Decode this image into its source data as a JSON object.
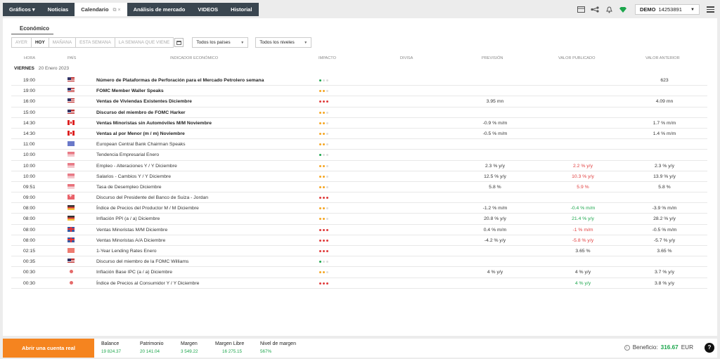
{
  "tabs": [
    {
      "label": "Gráficos ▾"
    },
    {
      "label": "Noticias"
    },
    {
      "label": "Calendario",
      "icons": "⧉ ×"
    },
    {
      "label": "Análisis de mercado"
    },
    {
      "label": "VIDEOS"
    },
    {
      "label": "Historial"
    }
  ],
  "account": {
    "mode": "DEMO",
    "number": "14253891"
  },
  "section_tab": "Económico",
  "date_buttons": [
    "AYER",
    "HOY",
    "MAÑANA",
    "ESTA SEMANA",
    "LA SEMANA QUE VIENE"
  ],
  "selected_date_button": "HOY",
  "filters": {
    "countries": "Todos los países",
    "levels": "Todos los niveles"
  },
  "columns": {
    "time": "HORA",
    "country": "PAÍS",
    "indicator": "INDICADOR ECONÓMICO",
    "impact": "IMPACTO",
    "currency": "DIVISA",
    "forecast": "PREVISIÓN",
    "published": "VALOR PUBLICADO",
    "previous": "VALOR ANTERIOR"
  },
  "day": {
    "weekday": "VIERNES",
    "date": "20 Enero 2023"
  },
  "impact_colors": {
    "low": "#1ca64c",
    "medium": "#f5a623",
    "high": "#e03c3c",
    "off": "#dddddd"
  },
  "events": [
    {
      "time": "19:00",
      "flag": "us",
      "name": "Número de Plataformas de Perforación para el Mercado Petrolero semana",
      "bold": true,
      "impact": "low",
      "forecast": "",
      "published": "",
      "published_color": "",
      "previous": "623"
    },
    {
      "time": "19:00",
      "flag": "us",
      "name": "FOMC Member Waller Speaks",
      "bold": true,
      "impact": "medium",
      "forecast": "",
      "published": "",
      "published_color": "",
      "previous": ""
    },
    {
      "time": "16:00",
      "flag": "us",
      "name": "Ventas de Viviendas Existentes Diciembre",
      "bold": true,
      "impact": "high",
      "forecast": "3.95 mn",
      "published": "",
      "published_color": "",
      "previous": "4.09 mn"
    },
    {
      "time": "15:00",
      "flag": "us",
      "name": "Discurso del miembro de FOMC Harker",
      "bold": true,
      "impact": "medium",
      "forecast": "",
      "published": "",
      "published_color": "",
      "previous": ""
    },
    {
      "time": "14:30",
      "flag": "ca",
      "name": "Ventas Minoristas sin Automóviles M/M Noviembre",
      "bold": true,
      "impact": "medium",
      "forecast": "-0.9 % m/m",
      "published": "",
      "published_color": "",
      "previous": "1.7 % m/m"
    },
    {
      "time": "14:30",
      "flag": "ca",
      "name": "Ventas al por Menor (m / m) Noviembre",
      "bold": true,
      "impact": "medium",
      "forecast": "-0.5 % m/m",
      "published": "",
      "published_color": "",
      "previous": "1.4 % m/m"
    },
    {
      "time": "11:00",
      "flag": "eu",
      "name": "European Central Bank Chairman Speaks",
      "bold": false,
      "impact": "medium",
      "forecast": "",
      "published": "",
      "published_color": "",
      "previous": ""
    },
    {
      "time": "10:00",
      "flag": "id",
      "name": "Tendencia Empresarial Enero",
      "bold": false,
      "impact": "low",
      "forecast": "",
      "published": "",
      "published_color": "",
      "previous": ""
    },
    {
      "time": "10:00",
      "flag": "id",
      "name": "Empleo - Alteraciones Y / Y Diciembre",
      "bold": false,
      "impact": "medium",
      "forecast": "2.3 % y/y",
      "published": "2.2 % y/y",
      "published_color": "neg",
      "previous": "2.3 % y/y"
    },
    {
      "time": "10:00",
      "flag": "id",
      "name": "Salarios - Cambios Y / Y Diciembre",
      "bold": false,
      "impact": "medium",
      "forecast": "12.5 % y/y",
      "published": "10.3 % y/y",
      "published_color": "neg",
      "previous": "13.9 % y/y"
    },
    {
      "time": "09:51",
      "flag": "sg",
      "name": "Tasa de Desempleo Diciembre",
      "bold": false,
      "impact": "medium",
      "forecast": "5.8 %",
      "published": "5.9 %",
      "published_color": "neg",
      "previous": "5.8 %"
    },
    {
      "time": "09:00",
      "flag": "ch",
      "name": "Discurso del Presidente del Banco de Suiza - Jordan",
      "bold": false,
      "impact": "high",
      "forecast": "",
      "published": "",
      "published_color": "",
      "previous": ""
    },
    {
      "time": "08:00",
      "flag": "de",
      "name": "Índice de Precios del Productor M / M Diciembre",
      "bold": false,
      "impact": "medium",
      "forecast": "-1.2 % m/m",
      "published": "-0.4 % m/m",
      "published_color": "pos",
      "previous": "-3.9 % m/m"
    },
    {
      "time": "08:00",
      "flag": "de",
      "name": "Inflación PPI (a / a) Diciembre",
      "bold": false,
      "impact": "medium",
      "forecast": "20.8 % y/y",
      "published": "21.4 % y/y",
      "published_color": "pos",
      "previous": "28.2 % y/y"
    },
    {
      "time": "08:00",
      "flag": "gb",
      "name": "Ventas Minoristas M/M Diciembre",
      "bold": false,
      "impact": "high",
      "forecast": "0.4 % m/m",
      "published": "-1 % m/m",
      "published_color": "neg",
      "previous": "-0.5 % m/m"
    },
    {
      "time": "08:00",
      "flag": "gb",
      "name": "Ventas Minoristas A/A Diciembre",
      "bold": false,
      "impact": "high",
      "forecast": "-4.2 % y/y",
      "published": "-5.8 % y/y",
      "published_color": "neg",
      "previous": "-5.7 % y/y"
    },
    {
      "time": "02:15",
      "flag": "cn",
      "name": "1-Year Lending Rates Enero",
      "bold": false,
      "impact": "high",
      "forecast": "",
      "published": "3.65 %",
      "published_color": "",
      "previous": "3.65 %"
    },
    {
      "time": "00:35",
      "flag": "us",
      "name": "Discurso del miembro de la FOMC Williams",
      "bold": false,
      "impact": "low",
      "forecast": "",
      "published": "",
      "published_color": "",
      "previous": ""
    },
    {
      "time": "00:30",
      "flag": "jp",
      "name": "Inflación Base IPC (a / a) Diciembre",
      "bold": false,
      "impact": "medium",
      "forecast": "4 % y/y",
      "published": "4 % y/y",
      "published_color": "",
      "previous": "3.7 % y/y"
    },
    {
      "time": "00:30",
      "flag": "jp",
      "name": "Índice de Precios al Consumidor Y / Y Diciembre",
      "bold": false,
      "impact": "high",
      "forecast": "",
      "published": "4 % y/y",
      "published_color": "pos",
      "previous": "3.8 % y/y"
    }
  ],
  "footer": {
    "cta": "Abrir una cuenta real",
    "stats": [
      {
        "label": "Balance",
        "value": "19 824.37"
      },
      {
        "label": "Patrimonio",
        "value": "20 141.04"
      },
      {
        "label": "Margen",
        "value": "3 549.22"
      },
      {
        "label": "Margen Libre",
        "value": "16 275.15"
      },
      {
        "label": "Nivel de margen",
        "value": "567%"
      }
    ],
    "benefit_label": "Beneficio:",
    "benefit_value": "316.67",
    "benefit_currency": "EUR",
    "help": "?"
  }
}
